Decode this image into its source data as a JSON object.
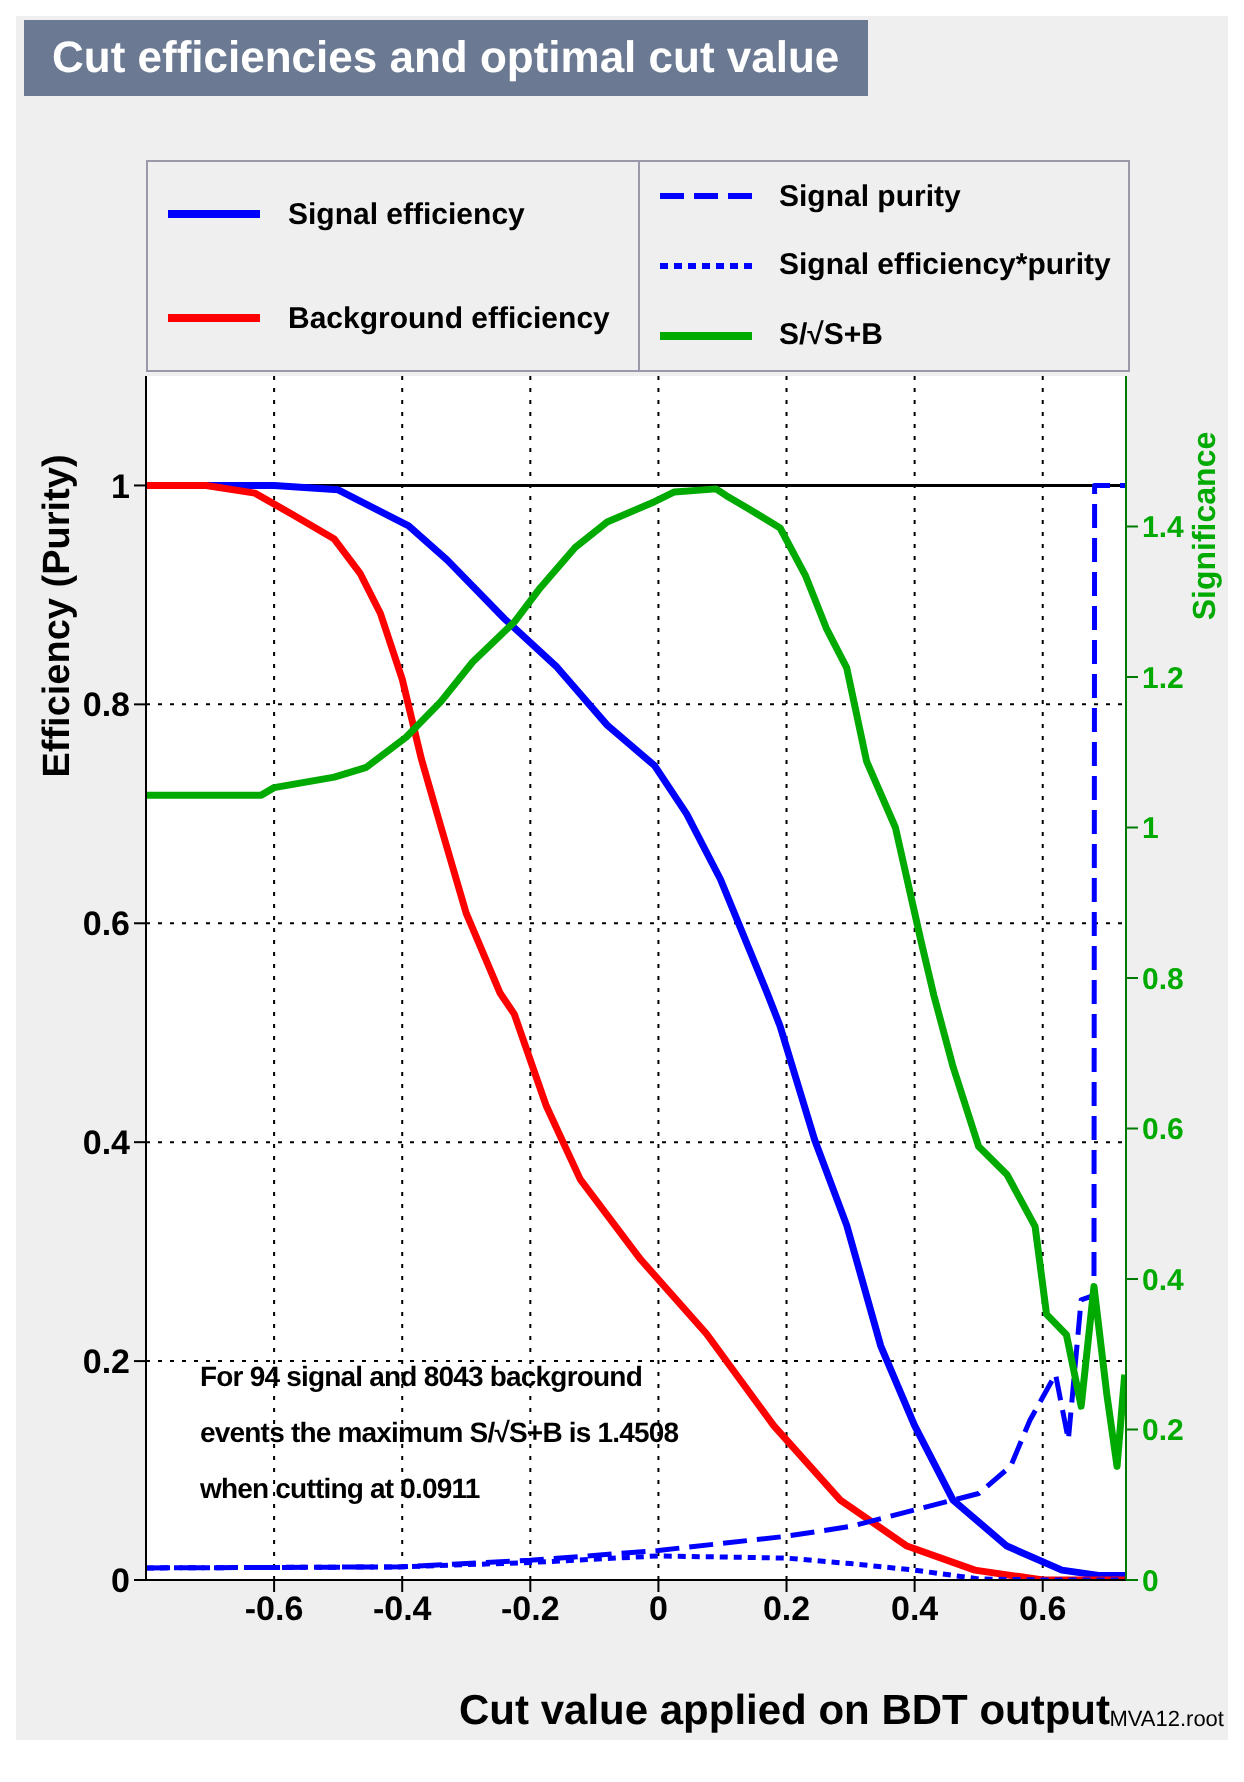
{
  "chart_data": {
    "type": "line",
    "title": "Cut efficiencies and optimal cut value",
    "xlabel": "Cut value applied on BDT output",
    "ylabel": "Efficiency (Purity)",
    "y2label": "Significance",
    "xlim": [
      -0.8,
      0.73
    ],
    "xticks": [
      -0.6,
      -0.4,
      -0.2,
      0,
      0.2,
      0.4,
      0.6
    ],
    "ylim": [
      0,
      1.1
    ],
    "yticks": [
      0,
      0.2,
      0.4,
      0.6,
      0.8,
      1
    ],
    "y2lim": [
      0,
      1.6
    ],
    "y2ticks": [
      0,
      0.2,
      0.4,
      0.6,
      0.8,
      1,
      1.2,
      1.4
    ],
    "grid": true,
    "legend": "top",
    "marker": "none",
    "ref_lines": [
      {
        "axis": "y",
        "value": 1,
        "color": "#000000",
        "line_style": "solid"
      }
    ],
    "annotations": [
      "For 94 signal and 8043 background events the maximum S/√S+B is 1.4508 when cutting at 0.0911",
      "MVA12.root"
    ],
    "series": [
      {
        "name": "Signal efficiency",
        "color": "#0000ff",
        "line_style": "solid",
        "x": [
          -0.8,
          -0.6,
          -0.5,
          -0.39,
          -0.33,
          -0.24,
          -0.16,
          -0.08,
          -0.006,
          0.044,
          0.097,
          0.17,
          0.19,
          0.244,
          0.294,
          0.347,
          0.4,
          0.46,
          0.544,
          0.63,
          0.69,
          0.73
        ],
        "values": [
          1,
          1,
          0.996,
          0.963,
          0.932,
          0.878,
          0.835,
          0.781,
          0.744,
          0.7,
          0.64,
          0.536,
          0.506,
          0.402,
          0.324,
          0.214,
          0.141,
          0.073,
          0.031,
          0.009,
          0.004,
          0.004
        ]
      },
      {
        "name": "Background efficiency",
        "color": "#ff0000",
        "line_style": "solid",
        "x": [
          -0.8,
          -0.706,
          -0.63,
          -0.57,
          -0.506,
          -0.466,
          -0.434,
          -0.4,
          -0.37,
          -0.34,
          -0.3,
          -0.247,
          -0.225,
          -0.175,
          -0.122,
          -0.028,
          0.075,
          0.18,
          0.284,
          0.388,
          0.494,
          0.6,
          0.73
        ],
        "values": [
          1,
          1,
          0.993,
          0.973,
          0.951,
          0.92,
          0.883,
          0.823,
          0.75,
          0.689,
          0.609,
          0.536,
          0.517,
          0.433,
          0.366,
          0.293,
          0.225,
          0.141,
          0.073,
          0.031,
          0.009,
          0,
          0
        ]
      },
      {
        "name": "Signal purity",
        "color": "#0000ff",
        "line_style": "dashed",
        "x": [
          -0.8,
          -0.4,
          -0.2,
          0,
          0.2,
          0.3,
          0.4,
          0.5,
          0.55,
          0.58,
          0.62,
          0.64,
          0.66,
          0.68,
          0.681,
          0.73
        ],
        "values": [
          0.011,
          0.012,
          0.018,
          0.027,
          0.04,
          0.049,
          0.064,
          0.079,
          0.104,
          0.146,
          0.188,
          0.128,
          0.256,
          0.26,
          1,
          1
        ]
      },
      {
        "name": "Signal efficiency*purity",
        "color": "#0000ff",
        "line_style": "dotted",
        "x": [
          -0.8,
          -0.4,
          -0.2,
          0,
          0.2,
          0.3,
          0.4,
          0.5,
          0.6,
          0.73
        ],
        "values": [
          0.011,
          0.012,
          0.016,
          0.022,
          0.02,
          0.015,
          0.009,
          0.001,
          0,
          0
        ]
      },
      {
        "name": "S/√S+B",
        "color": "#00aa00",
        "line_style": "solid",
        "axis": "y2",
        "x": [
          -0.8,
          -0.62,
          -0.6,
          -0.506,
          -0.456,
          -0.394,
          -0.34,
          -0.29,
          -0.225,
          -0.184,
          -0.13,
          -0.08,
          -0.006,
          0.025,
          0.075,
          0.09,
          0.106,
          0.138,
          0.19,
          0.23,
          0.262,
          0.294,
          0.325,
          0.37,
          0.41,
          0.43,
          0.46,
          0.5,
          0.544,
          0.588,
          0.606,
          0.637,
          0.66,
          0.68,
          0.7,
          0.716,
          0.728
        ],
        "values": [
          1.043,
          1.043,
          1.053,
          1.067,
          1.08,
          1.12,
          1.167,
          1.22,
          1.273,
          1.319,
          1.372,
          1.406,
          1.433,
          1.446,
          1.449,
          1.45,
          1.441,
          1.425,
          1.398,
          1.334,
          1.265,
          1.212,
          1.088,
          1.0,
          0.849,
          0.777,
          0.682,
          0.576,
          0.539,
          0.47,
          0.353,
          0.326,
          0.231,
          0.39,
          0.247,
          0.151,
          0.273
        ]
      }
    ]
  }
}
